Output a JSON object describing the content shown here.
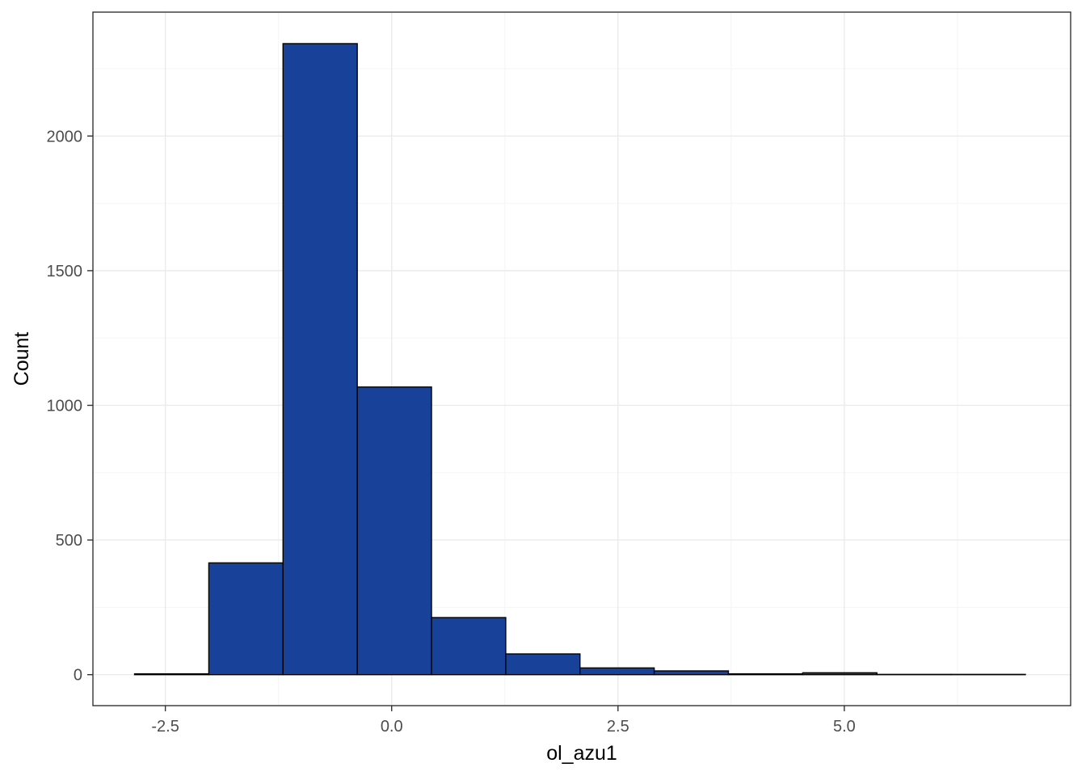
{
  "chart_data": {
    "type": "bar",
    "title": "",
    "xlabel": "ol_azu1",
    "ylabel": "Count",
    "xlim": [
      -3.3,
      7.5
    ],
    "ylim": [
      -115,
      2460
    ],
    "bin_width": 0.82,
    "bins": [
      {
        "x0": -2.84,
        "x1": -2.02,
        "count": 3
      },
      {
        "x0": -2.02,
        "x1": -1.2,
        "count": 415
      },
      {
        "x0": -1.2,
        "x1": -0.38,
        "count": 2343
      },
      {
        "x0": -0.38,
        "x1": 0.44,
        "count": 1068
      },
      {
        "x0": 0.44,
        "x1": 1.26,
        "count": 212
      },
      {
        "x0": 1.26,
        "x1": 2.08,
        "count": 77
      },
      {
        "x0": 2.08,
        "x1": 2.9,
        "count": 25
      },
      {
        "x0": 2.9,
        "x1": 3.72,
        "count": 14
      },
      {
        "x0": 3.72,
        "x1": 4.54,
        "count": 3
      },
      {
        "x0": 4.54,
        "x1": 5.36,
        "count": 7
      },
      {
        "x0": 5.36,
        "x1": 6.18,
        "count": 1
      },
      {
        "x0": 6.18,
        "x1": 7.0,
        "count": 1
      }
    ],
    "x_ticks": [
      {
        "value": -2.5,
        "label": "-2.5"
      },
      {
        "value": 0.0,
        "label": "0.0"
      },
      {
        "value": 2.5,
        "label": "2.5"
      },
      {
        "value": 5.0,
        "label": "5.0"
      }
    ],
    "x_minor_ticks": [
      -1.25,
      1.25,
      3.75,
      6.25
    ],
    "y_ticks": [
      {
        "value": 0,
        "label": "0"
      },
      {
        "value": 500,
        "label": "500"
      },
      {
        "value": 1000,
        "label": "1000"
      },
      {
        "value": 1500,
        "label": "1500"
      },
      {
        "value": 2000,
        "label": "2000"
      }
    ],
    "y_minor_ticks": [
      250,
      750,
      1250,
      1750,
      2250
    ],
    "grid": true,
    "legend": "none",
    "colors": {
      "bar_fill": "#18429a",
      "bar_outline": "#000000",
      "grid_major": "#ebebeb",
      "grid_minor": "#f5f5f5",
      "panel_border": "#333333",
      "tick_text": "#4d4d4d"
    }
  }
}
